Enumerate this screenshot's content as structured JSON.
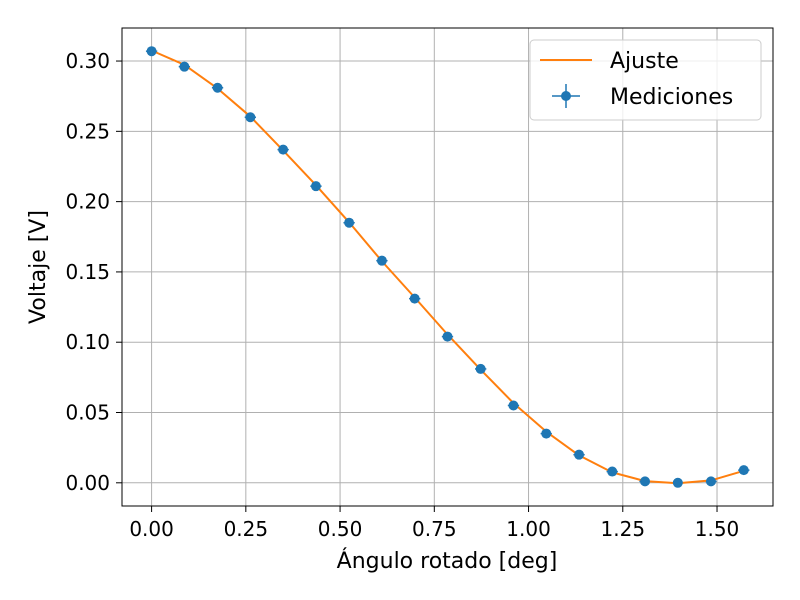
{
  "chart_data": {
    "type": "scatter",
    "xlabel": "Ángulo rotado [deg]",
    "ylabel": "Voltaje [V]",
    "xlim": [
      -0.0785,
      1.6485
    ],
    "ylim": [
      -0.0165,
      0.3235
    ],
    "xticks": [
      0.0,
      0.25,
      0.5,
      0.75,
      1.0,
      1.25,
      1.5
    ],
    "xtick_labels": [
      "0.00",
      "0.25",
      "0.50",
      "0.75",
      "1.00",
      "1.25",
      "1.50"
    ],
    "yticks": [
      0.0,
      0.05,
      0.1,
      0.15,
      0.2,
      0.25,
      0.3
    ],
    "ytick_labels": [
      "0.00",
      "0.05",
      "0.10",
      "0.15",
      "0.20",
      "0.25",
      "0.30"
    ],
    "grid": true,
    "legend_position": "top-right",
    "series": [
      {
        "name": "Ajuste",
        "kind": "line",
        "color": "#ff7f0e",
        "x": [
          0.0,
          0.087,
          0.175,
          0.262,
          0.349,
          0.436,
          0.524,
          0.611,
          0.698,
          0.785,
          0.873,
          0.96,
          1.047,
          1.134,
          1.222,
          1.309,
          1.396,
          1.484,
          1.571
        ],
        "y": [
          0.3075,
          0.2973,
          0.2805,
          0.2605,
          0.2364,
          0.2117,
          0.1853,
          0.1576,
          0.1318,
          0.1055,
          0.0805,
          0.0567,
          0.0364,
          0.0195,
          0.0074,
          0.0012,
          -0.0003,
          0.0017,
          0.0085
        ]
      },
      {
        "name": "Mediciones",
        "kind": "errorbar",
        "color": "#1f77b4",
        "x": [
          0.0,
          0.087,
          0.175,
          0.262,
          0.349,
          0.436,
          0.524,
          0.611,
          0.698,
          0.785,
          0.873,
          0.96,
          1.047,
          1.134,
          1.222,
          1.309,
          1.396,
          1.484,
          1.571
        ],
        "y": [
          0.307,
          0.296,
          0.281,
          0.26,
          0.237,
          0.211,
          0.185,
          0.158,
          0.131,
          0.104,
          0.081,
          0.055,
          0.035,
          0.02,
          0.008,
          0.001,
          0.0,
          0.001,
          0.009
        ],
        "xerr": 0.015,
        "yerr": 0.001
      }
    ]
  }
}
